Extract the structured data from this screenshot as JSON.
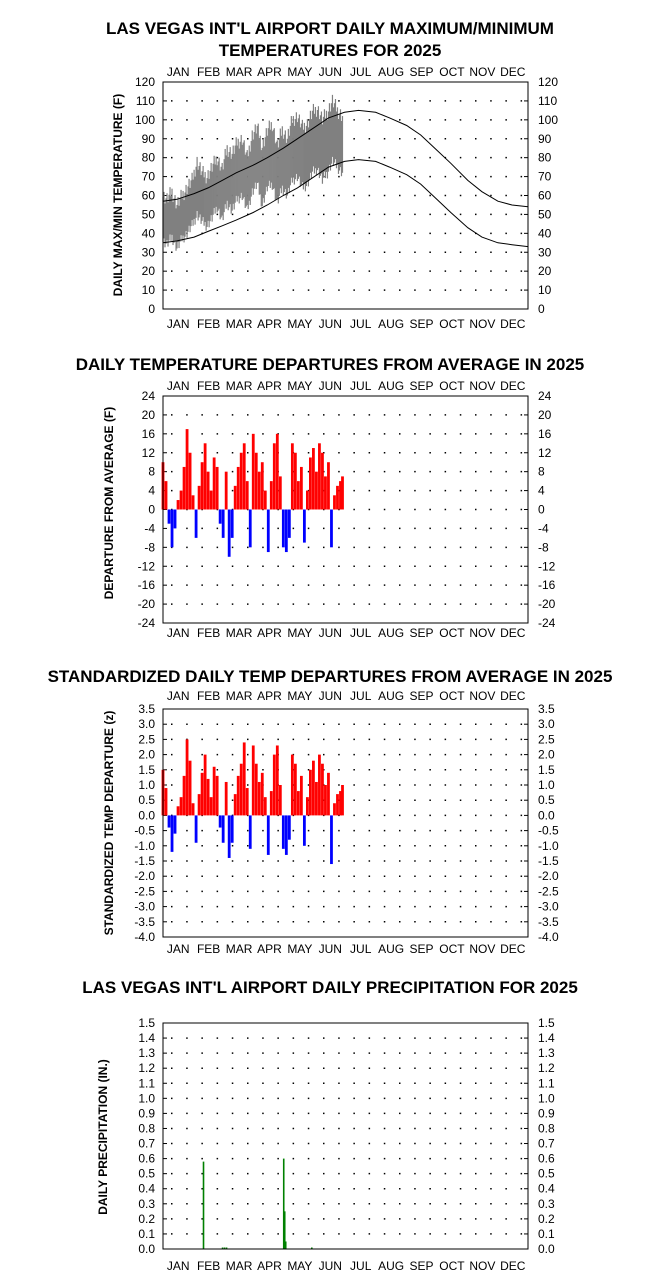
{
  "chart_data": [
    {
      "type": "line",
      "title_lines": [
        "LAS VEGAS INT'L AIRPORT DAILY MAXIMUM/MINIMUM",
        "TEMPERATURES FOR 2025"
      ],
      "ylabel": "DAILY MAX/MIN TEMPERATURE (F)",
      "months": [
        "JAN",
        "FEB",
        "MAR",
        "APR",
        "MAY",
        "JUN",
        "JUL",
        "AUG",
        "SEP",
        "OCT",
        "NOV",
        "DEC"
      ],
      "ylim": [
        0,
        120
      ],
      "yticks": [
        0,
        10,
        20,
        30,
        40,
        50,
        60,
        70,
        80,
        90,
        100,
        110,
        120
      ],
      "grid": true,
      "colors": {
        "observed_range": "#808080",
        "normal": "#000000"
      },
      "normal_high": {
        "x_day": [
          1,
          15,
          32,
          46,
          60,
          74,
          91,
          105,
          121,
          135,
          152,
          166,
          182,
          196,
          213,
          227,
          244,
          258,
          274,
          288,
          305,
          319,
          335,
          349,
          365
        ],
        "y": [
          57,
          58,
          61,
          64,
          68,
          72,
          76,
          80,
          85,
          90,
          96,
          101,
          104,
          105,
          104,
          101,
          97,
          92,
          84,
          77,
          68,
          62,
          57,
          55,
          54
        ]
      },
      "normal_low": {
        "x_day": [
          1,
          15,
          32,
          46,
          60,
          74,
          91,
          105,
          121,
          135,
          152,
          166,
          182,
          196,
          213,
          227,
          244,
          258,
          274,
          288,
          305,
          319,
          335,
          349,
          365
        ],
        "y": [
          35,
          36,
          38,
          41,
          44,
          47,
          51,
          55,
          60,
          64,
          70,
          75,
          78,
          79,
          78,
          75,
          71,
          66,
          58,
          51,
          43,
          38,
          35,
          34,
          33
        ]
      },
      "observed": {
        "x_day": [
          1,
          5,
          10,
          15,
          20,
          25,
          30,
          35,
          40,
          45,
          50,
          55,
          60,
          65,
          70,
          75,
          80,
          85,
          90,
          95,
          100,
          105,
          110,
          115,
          120,
          125,
          130,
          135,
          140,
          145,
          150,
          155,
          160,
          165,
          170,
          175,
          180
        ],
        "max": [
          60,
          58,
          62,
          55,
          60,
          64,
          68,
          78,
          72,
          70,
          75,
          80,
          74,
          85,
          82,
          88,
          90,
          80,
          92,
          96,
          86,
          94,
          98,
          86,
          95,
          90,
          100,
          102,
          96,
          98,
          104,
          106,
          100,
          104,
          110,
          105,
          102
        ],
        "min": [
          36,
          34,
          38,
          32,
          37,
          40,
          44,
          50,
          46,
          44,
          48,
          54,
          47,
          56,
          52,
          58,
          60,
          52,
          62,
          66,
          55,
          64,
          66,
          56,
          64,
          60,
          68,
          70,
          64,
          66,
          72,
          74,
          68,
          72,
          78,
          75,
          72
        ]
      }
    },
    {
      "type": "bar",
      "title": "DAILY TEMPERATURE DEPARTURES FROM AVERAGE IN 2025",
      "ylabel": "DEPARTURE FROM AVERAGE (F)",
      "months": [
        "JAN",
        "FEB",
        "MAR",
        "APR",
        "MAY",
        "JUN",
        "JUL",
        "AUG",
        "SEP",
        "OCT",
        "NOV",
        "DEC"
      ],
      "ylim": [
        -24,
        24
      ],
      "yticks": [
        24,
        20,
        16,
        12,
        8,
        4,
        0,
        -4,
        -8,
        -12,
        -16,
        -20,
        -24
      ],
      "ytick_labels": [
        "24",
        "20",
        "16",
        "12",
        "8",
        "4",
        "0",
        "-4",
        "-8",
        "-12",
        "-16",
        "-20",
        "-24"
      ],
      "grid": true,
      "colors": {
        "positive": "#ff0000",
        "negative": "#0000ff"
      },
      "x_day": [
        1,
        4,
        7,
        10,
        13,
        16,
        19,
        22,
        25,
        28,
        31,
        34,
        37,
        40,
        43,
        46,
        49,
        52,
        55,
        58,
        61,
        64,
        67,
        70,
        73,
        76,
        79,
        82,
        85,
        88,
        91,
        94,
        97,
        100,
        103,
        106,
        109,
        112,
        115,
        118,
        121,
        124,
        127,
        130,
        133,
        136,
        139,
        142,
        145,
        148,
        151,
        154,
        157,
        160,
        163,
        166,
        169,
        172,
        175,
        178,
        180
      ],
      "values": [
        10,
        6,
        -3,
        -8,
        -4,
        2,
        4,
        9,
        17,
        12,
        3,
        -6,
        5,
        10,
        14,
        8,
        4,
        11,
        9,
        -3,
        -6,
        8,
        -10,
        -6,
        5,
        9,
        12,
        14,
        6,
        -8,
        16,
        12,
        8,
        10,
        4,
        -9,
        6,
        14,
        16,
        7,
        -8,
        -9,
        -6,
        14,
        12,
        6,
        9,
        -7,
        4,
        11,
        13,
        8,
        14,
        12,
        7,
        10,
        -8,
        3,
        5,
        6,
        7
      ]
    },
    {
      "type": "bar",
      "title": "STANDARDIZED DAILY TEMP DEPARTURES FROM AVERAGE IN 2025",
      "ylabel": "STANDARDIZED TEMP DEPARTURE (z)",
      "months": [
        "JAN",
        "FEB",
        "MAR",
        "APR",
        "MAY",
        "JUN",
        "JUL",
        "AUG",
        "SEP",
        "OCT",
        "NOV",
        "DEC"
      ],
      "ylim": [
        -4.0,
        3.5
      ],
      "yticks": [
        3.5,
        3.0,
        2.5,
        2.0,
        1.5,
        1.0,
        0.5,
        0.0,
        -0.5,
        -1.0,
        -1.5,
        -2.0,
        -2.5,
        -3.0,
        -3.5,
        -4.0
      ],
      "ytick_labels": [
        "3.5",
        "3.0",
        "2.5",
        "2.0",
        "1.5",
        "1.0",
        "0.5",
        "0.0",
        "-0.5",
        "-1.0",
        "-1.5",
        "-2.0",
        "-2.5",
        "-3.0",
        "-3.5",
        "-4.0"
      ],
      "grid": true,
      "colors": {
        "positive": "#ff0000",
        "negative": "#0000ff"
      },
      "x_day": [
        1,
        4,
        7,
        10,
        13,
        16,
        19,
        22,
        25,
        28,
        31,
        34,
        37,
        40,
        43,
        46,
        49,
        52,
        55,
        58,
        61,
        64,
        67,
        70,
        73,
        76,
        79,
        82,
        85,
        88,
        91,
        94,
        97,
        100,
        103,
        106,
        109,
        112,
        115,
        118,
        121,
        124,
        127,
        130,
        133,
        136,
        139,
        142,
        145,
        148,
        151,
        154,
        157,
        160,
        163,
        166,
        169,
        172,
        175,
        178,
        180
      ],
      "values": [
        1.5,
        0.9,
        -0.4,
        -1.2,
        -0.6,
        0.3,
        0.6,
        1.3,
        2.5,
        1.8,
        0.4,
        -0.9,
        0.7,
        1.4,
        2.0,
        1.2,
        0.6,
        1.6,
        1.3,
        -0.4,
        -0.9,
        1.1,
        -1.4,
        -0.9,
        0.7,
        1.3,
        1.7,
        2.4,
        0.9,
        -1.1,
        2.3,
        1.7,
        1.1,
        1.4,
        0.6,
        -1.3,
        0.8,
        2.0,
        2.3,
        1.0,
        -1.1,
        -1.3,
        -0.8,
        2.0,
        1.7,
        0.8,
        1.3,
        -1.0,
        0.6,
        1.5,
        1.8,
        1.1,
        2.0,
        1.7,
        1.0,
        1.4,
        -1.6,
        0.4,
        0.7,
        0.8,
        1.0
      ]
    },
    {
      "type": "bar",
      "title": "LAS VEGAS INT'L AIRPORT DAILY PRECIPITATION FOR 2025",
      "ylabel": "DAILY PRECIPITATION (IN.)",
      "months": [
        "JAN",
        "FEB",
        "MAR",
        "APR",
        "MAY",
        "JUN",
        "JUL",
        "AUG",
        "SEP",
        "OCT",
        "NOV",
        "DEC"
      ],
      "ylim": [
        0,
        1.5
      ],
      "yticks": [
        1.5,
        1.4,
        1.3,
        1.2,
        1.1,
        1.0,
        0.9,
        0.8,
        0.7,
        0.6,
        0.5,
        0.4,
        0.3,
        0.2,
        0.1,
        0.0
      ],
      "ytick_labels": [
        "1.5",
        "1.4",
        "1.3",
        "1.2",
        "1.1",
        "1.0",
        "0.9",
        "0.8",
        "0.7",
        "0.6",
        "0.5",
        "0.4",
        "0.3",
        "0.2",
        "0.1",
        "0.0"
      ],
      "grid": true,
      "colors": {
        "precip": "#008000"
      },
      "x_day": [
        42,
        61,
        63,
        65,
        122,
        123,
        124,
        150
      ],
      "values": [
        0.58,
        0.01,
        0.01,
        0.01,
        0.6,
        0.25,
        0.05,
        0.01
      ]
    }
  ]
}
